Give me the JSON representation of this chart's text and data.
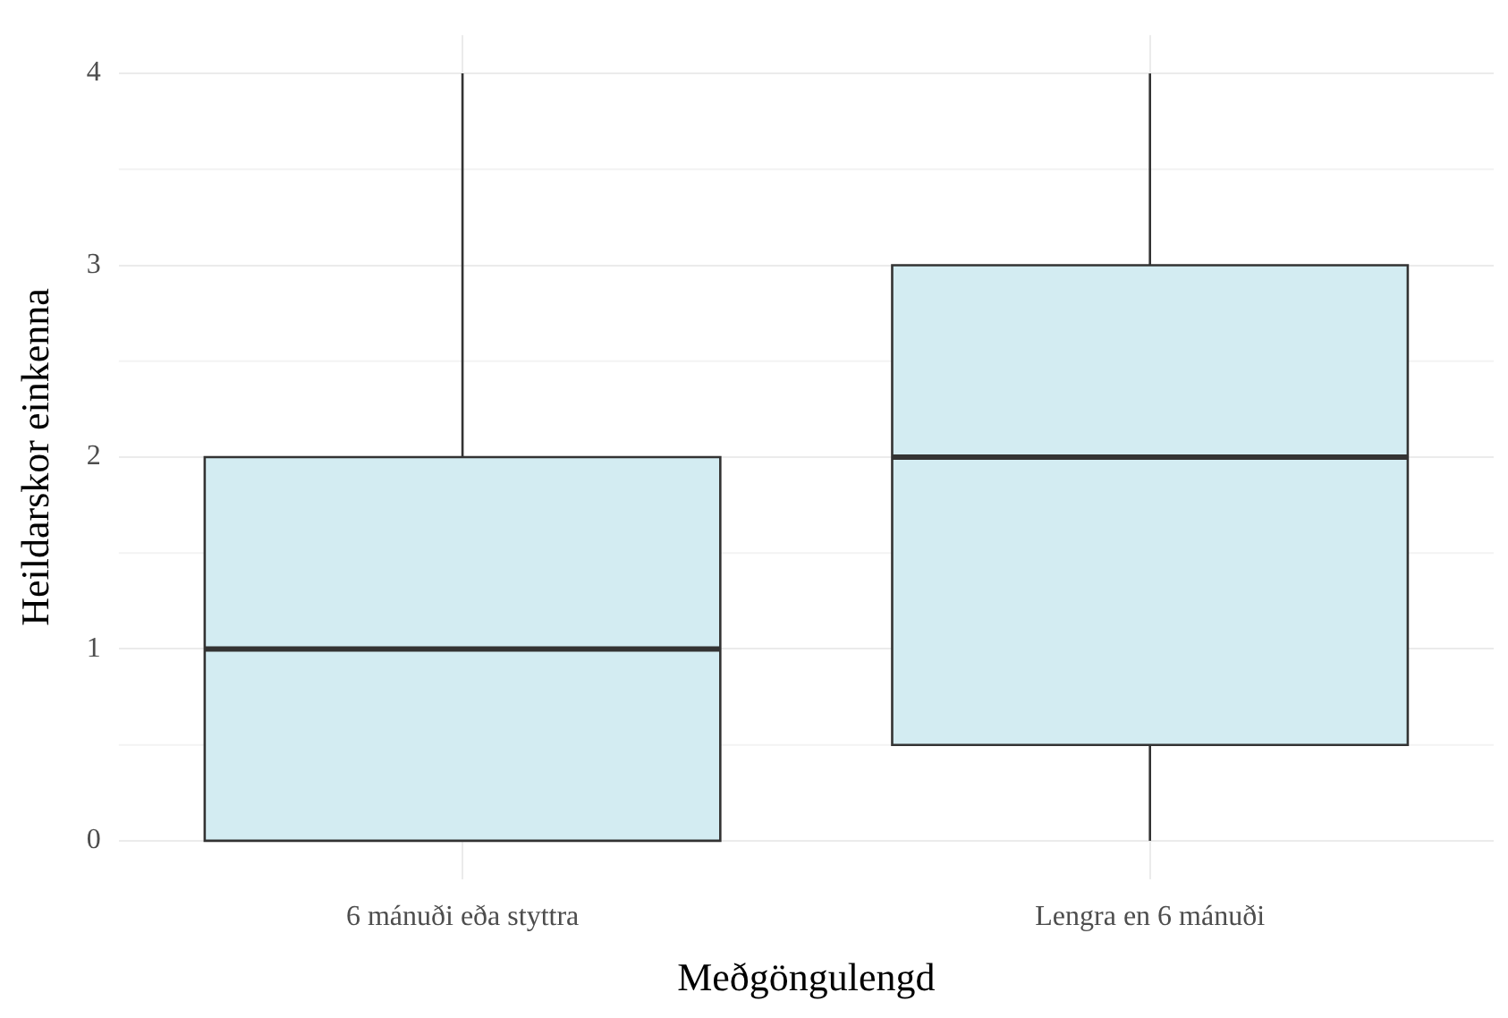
{
  "chart_data": {
    "type": "box",
    "xlabel": "Meðgöngulengd",
    "ylabel": "Heildarskor einkenna",
    "categories": [
      "6 mánuði eða styttra",
      "Lengra en 6 mánuði"
    ],
    "boxes": [
      {
        "low": 0,
        "q1": 0,
        "median": 1,
        "q3": 2,
        "high": 4
      },
      {
        "low": 0,
        "q1": 0.5,
        "median": 2,
        "q3": 3,
        "high": 4
      }
    ],
    "color": "#d3ecf2",
    "ylim": [
      -0.2,
      4.2
    ],
    "yticks": [
      0,
      1,
      2,
      3,
      4
    ],
    "grid": true,
    "legend": false
  }
}
